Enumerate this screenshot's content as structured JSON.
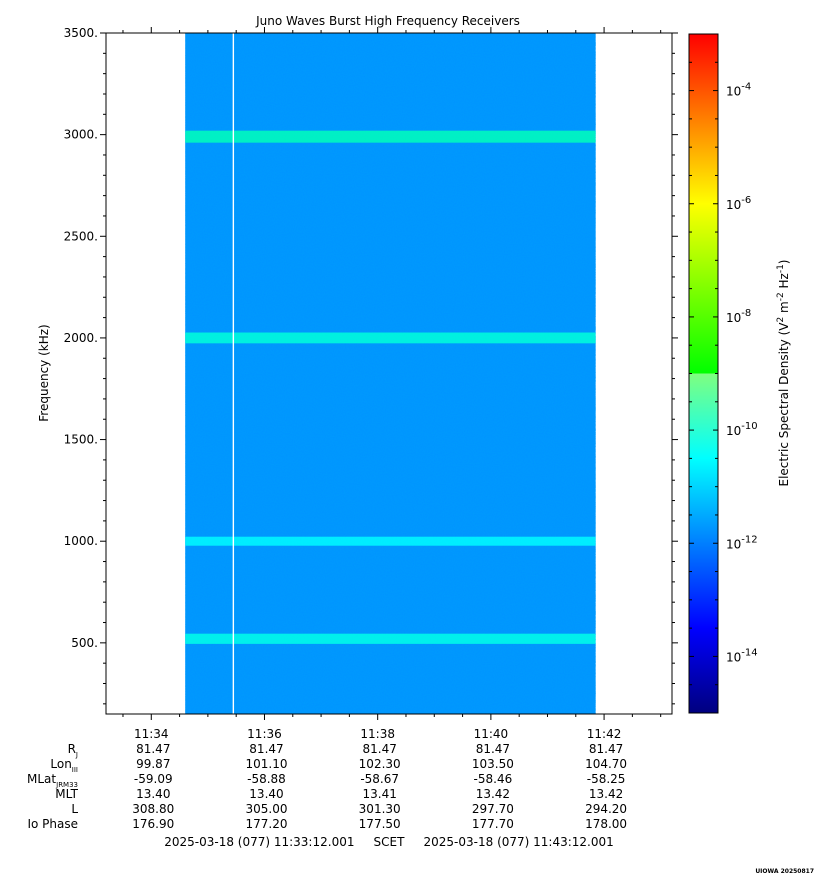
{
  "chart_data": {
    "type": "heatmap",
    "title": "Juno Waves Burst High Frequency Receivers",
    "ylabel": "Frequency (kHz)",
    "ylim": [
      150,
      3500
    ],
    "y_ticks": [
      {
        "value": 500,
        "label": "500."
      },
      {
        "value": 1000,
        "label": "1000."
      },
      {
        "value": 1500,
        "label": "1500."
      },
      {
        "value": 2000,
        "label": "2000."
      },
      {
        "value": 2500,
        "label": "2500."
      },
      {
        "value": 3000,
        "label": "3000."
      },
      {
        "value": 3500,
        "label": "3500."
      }
    ],
    "x_range_minutes": [
      33.2,
      43.2
    ],
    "x_ticks": [
      {
        "minute": 34,
        "label": "11:34"
      },
      {
        "minute": 36,
        "label": "11:36"
      },
      {
        "minute": 38,
        "label": "11:38"
      },
      {
        "minute": 40,
        "label": "11:40"
      },
      {
        "minute": 42,
        "label": "11:42"
      }
    ],
    "data_extent_minutes": [
      34.6,
      41.85
    ],
    "data_gap_minute": 35.45,
    "emission_bands_khz": [
      {
        "center": 520,
        "strength": 0.7
      },
      {
        "center": 1000,
        "strength": 0.5
      },
      {
        "center": 2000,
        "strength": 0.8
      },
      {
        "center": 2990,
        "strength": 1.0
      }
    ],
    "background_level_exponent": -12,
    "colorbar": {
      "label": "Electric Spectral Density (V",
      "label_sup1": "2",
      "label_mid": " m",
      "label_sup2": "-2",
      "label_mid2": " Hz",
      "label_sup3": "-1",
      "label_end": ")",
      "range_exponent": [
        -15.0,
        -3.0
      ],
      "ticks": [
        {
          "exponent": -14,
          "base": "10",
          "sup": "-14"
        },
        {
          "exponent": -12,
          "base": "10",
          "sup": "-12"
        },
        {
          "exponent": -10,
          "base": "10",
          "sup": "-10"
        },
        {
          "exponent": -8,
          "base": "10",
          "sup": "-8"
        },
        {
          "exponent": -6,
          "base": "10",
          "sup": "-6"
        },
        {
          "exponent": -4,
          "base": "10",
          "sup": "-4"
        }
      ]
    },
    "ephemeris": {
      "rows": [
        {
          "label": "R",
          "sub": "J",
          "values": [
            "81.47",
            "81.47",
            "81.47",
            "81.47",
            "81.47"
          ]
        },
        {
          "label": "Lon",
          "sub": "III",
          "values": [
            "99.87",
            "101.10",
            "102.30",
            "103.50",
            "104.70"
          ]
        },
        {
          "label": "MLat",
          "sub": "JRM33",
          "values": [
            "-59.09",
            "-58.88",
            "-58.67",
            "-58.46",
            "-58.25"
          ]
        },
        {
          "label": "MLT",
          "sub": "",
          "values": [
            "13.40",
            "13.40",
            "13.41",
            "13.42",
            "13.42"
          ]
        },
        {
          "label": "L",
          "sub": "",
          "values": [
            "308.80",
            "305.00",
            "301.30",
            "297.70",
            "294.20"
          ]
        },
        {
          "label": "Io Phase",
          "sub": "",
          "values": [
            "176.90",
            "177.20",
            "177.50",
            "177.70",
            "178.00"
          ]
        }
      ]
    },
    "time_range_label": "2025-03-18 (077) 11:33:12.001     SCET     2025-03-18 (077) 11:43:12.001",
    "credit": "UIOWA 20250817"
  }
}
